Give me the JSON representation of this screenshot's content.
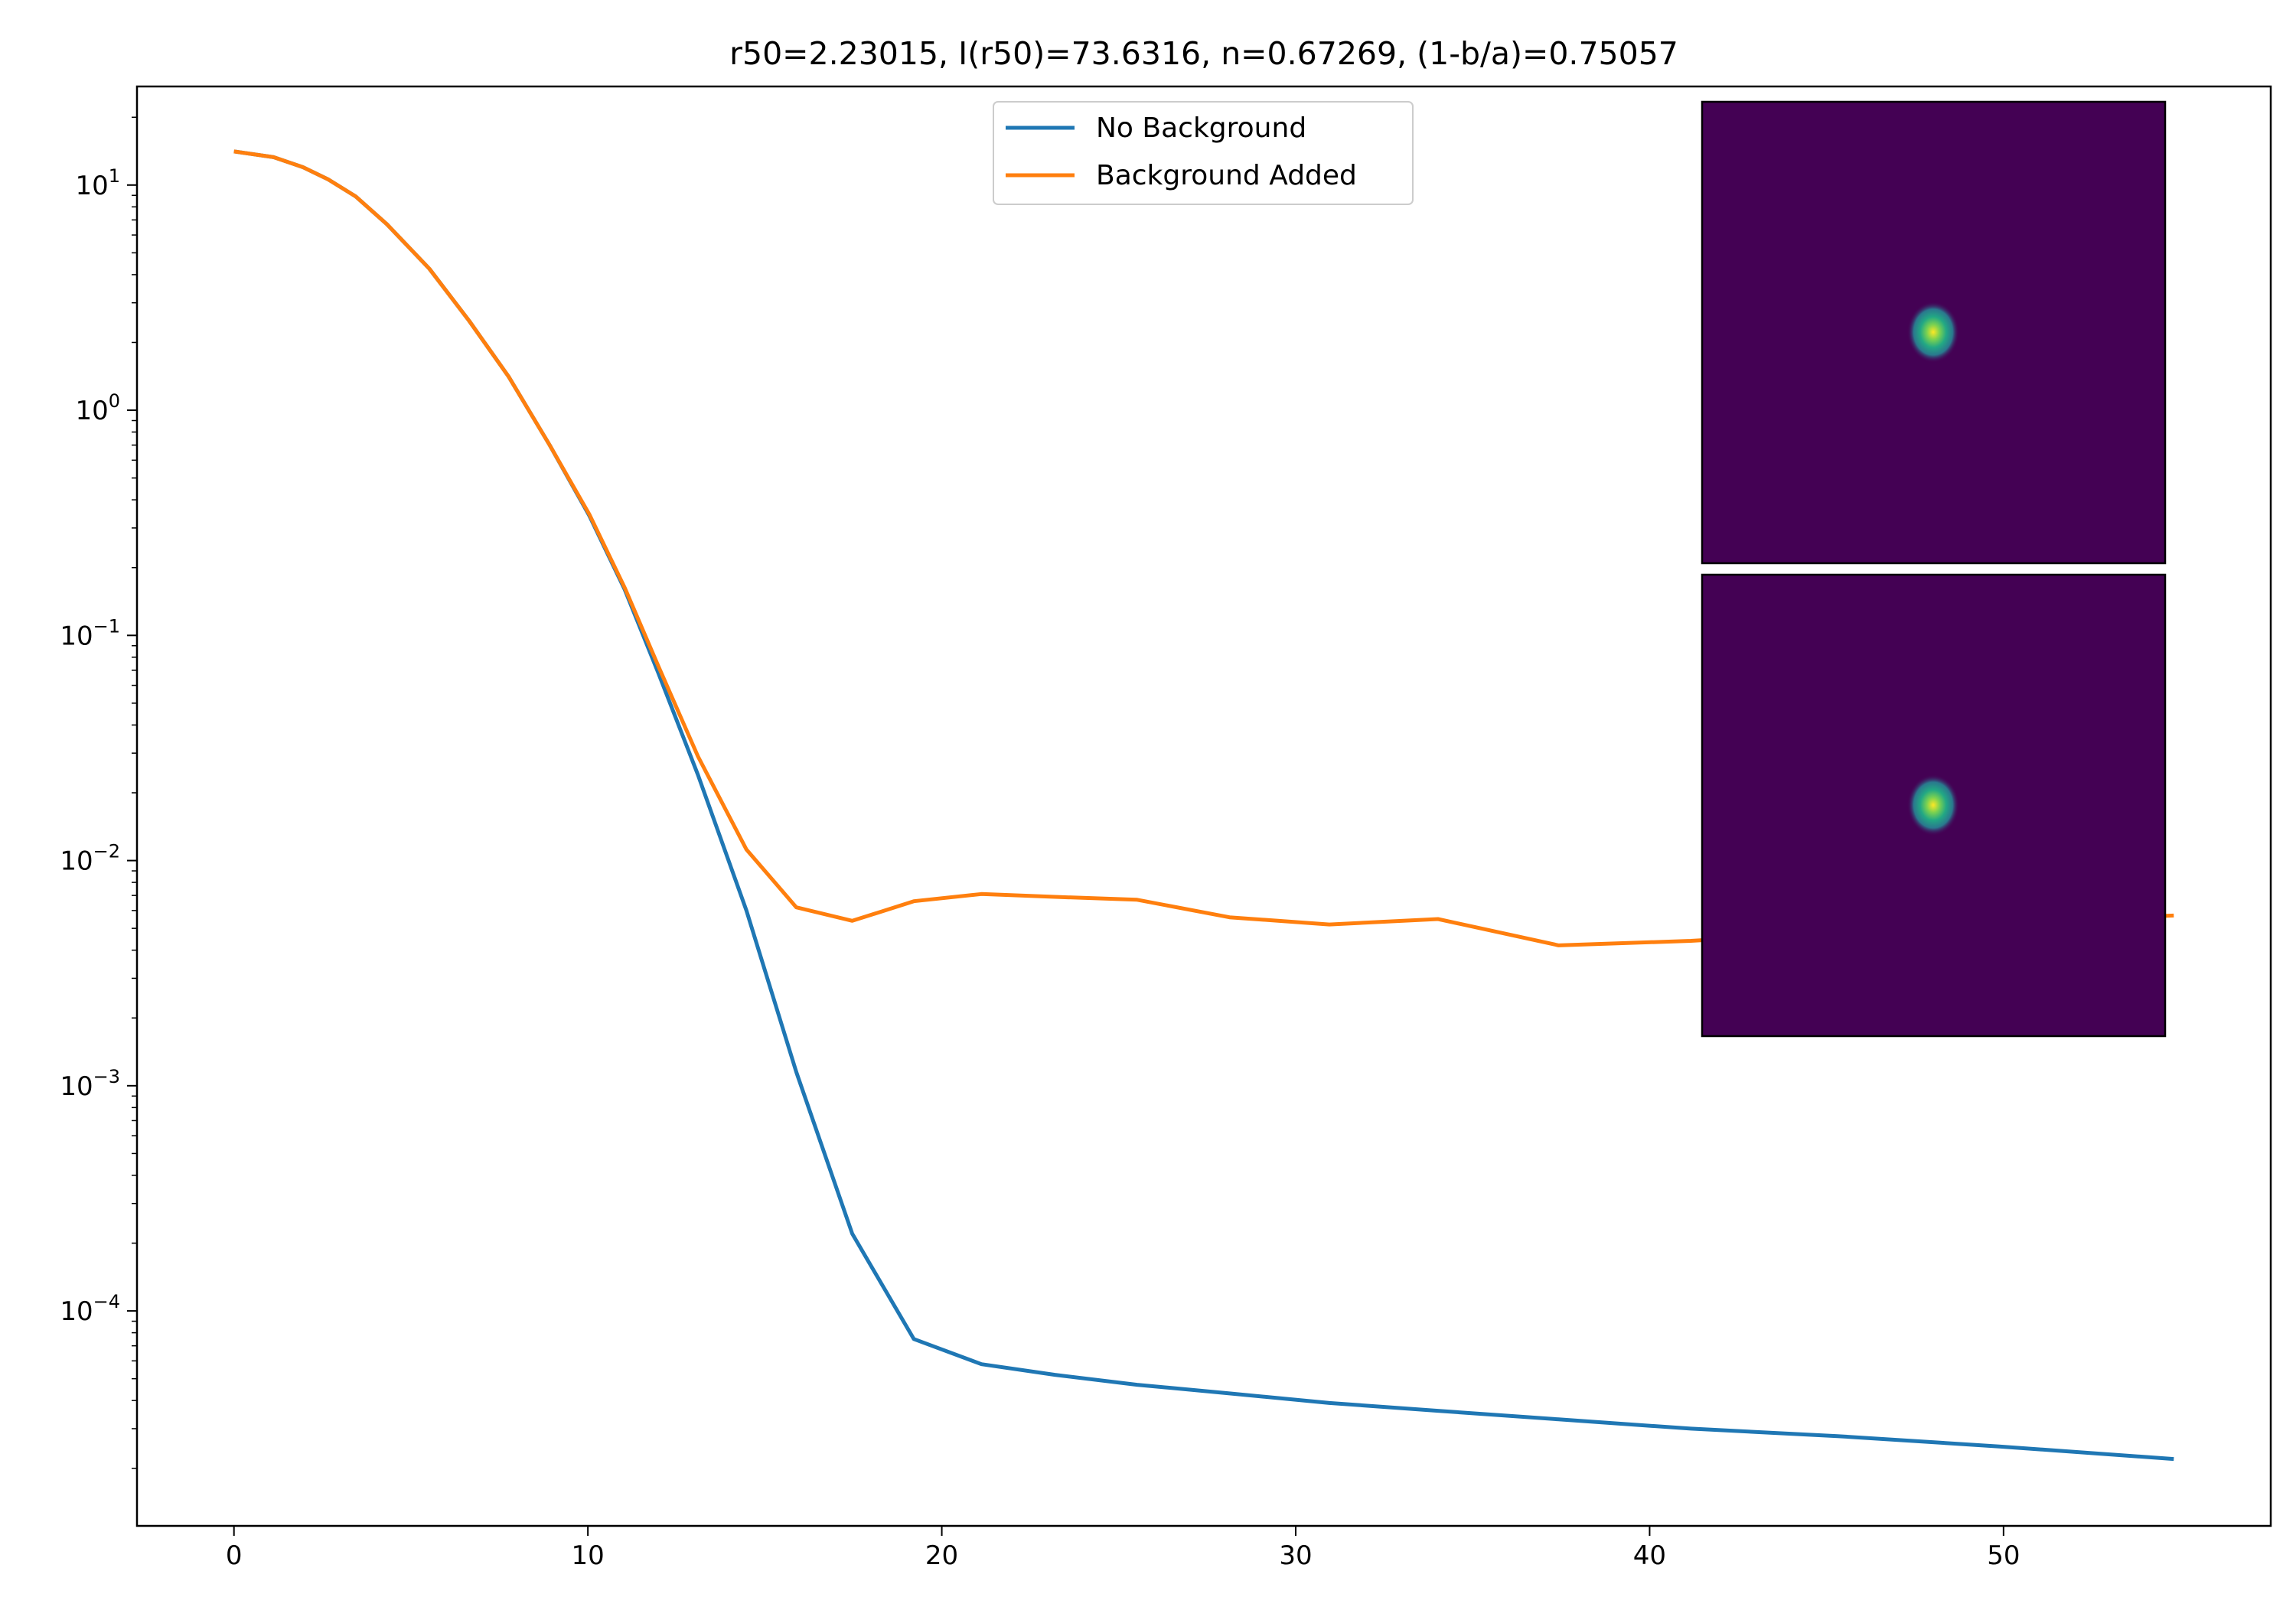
{
  "chart_data": {
    "type": "line",
    "title": "r50=2.23015, I(r50)=73.6316, n=0.67269, (1-b/a)=0.75057",
    "xlabel": "",
    "ylabel": "",
    "xscale": "linear",
    "yscale": "log",
    "xlim": [
      -2.74,
      57.55
    ],
    "ylim": [
      1.11e-05,
      27.4
    ],
    "grid": false,
    "legend_placement": "top-center",
    "x_ticks": [
      0,
      10,
      20,
      30,
      40,
      50
    ],
    "x_tick_labels": [
      "0",
      "10",
      "20",
      "30",
      "40",
      "50"
    ],
    "y_ticks": [
      {
        "value": 10,
        "base": "10",
        "exp": "1"
      },
      {
        "value": 1,
        "base": "10",
        "exp": "0"
      },
      {
        "value": 0.1,
        "base": "10",
        "exp": "−1"
      },
      {
        "value": 0.01,
        "base": "10",
        "exp": "−2"
      },
      {
        "value": 0.001,
        "base": "10",
        "exp": "−3"
      },
      {
        "value": 0.0001,
        "base": "10",
        "exp": "−4"
      }
    ],
    "x": [
      0,
      1.12,
      1.95,
      2.66,
      3.44,
      4.32,
      5.52,
      6.64,
      7.76,
      8.92,
      10.04,
      11.04,
      11.99,
      13.11,
      14.48,
      15.89,
      17.47,
      19.21,
      21.12,
      23.2,
      25.52,
      28.13,
      30.95,
      34.02,
      37.43,
      41.16,
      45.31,
      49.88,
      54.81
    ],
    "series": [
      {
        "name": "No Background",
        "color": "#1f77b4",
        "values": [
          14.1,
          13.3,
          12.0,
          10.6,
          8.9,
          6.7,
          4.25,
          2.5,
          1.41,
          0.7,
          0.34,
          0.16,
          0.068,
          0.024,
          0.006,
          0.00115,
          0.00022,
          7.5e-05,
          5.8e-05,
          5.2e-05,
          4.7e-05,
          4.3e-05,
          3.9e-05,
          3.6e-05,
          3.3e-05,
          3e-05,
          2.78e-05,
          2.5e-05,
          2.2e-05
        ]
      },
      {
        "name": "Background Added",
        "color": "#ff7f0e",
        "values": [
          14.1,
          13.3,
          12.0,
          10.6,
          8.9,
          6.7,
          4.25,
          2.5,
          1.41,
          0.7,
          0.345,
          0.163,
          0.073,
          0.029,
          0.0112,
          0.0062,
          0.0054,
          0.0066,
          0.0071,
          0.0069,
          0.0067,
          0.0056,
          0.0052,
          0.0055,
          0.0042,
          0.0044,
          0.0048,
          0.0053,
          0.0057
        ]
      }
    ],
    "insets": [
      {
        "name": "image-no-background",
        "colormap": "viridis",
        "background": "#440154"
      },
      {
        "name": "image-background-added",
        "colormap": "viridis",
        "background": "#440154"
      }
    ]
  }
}
